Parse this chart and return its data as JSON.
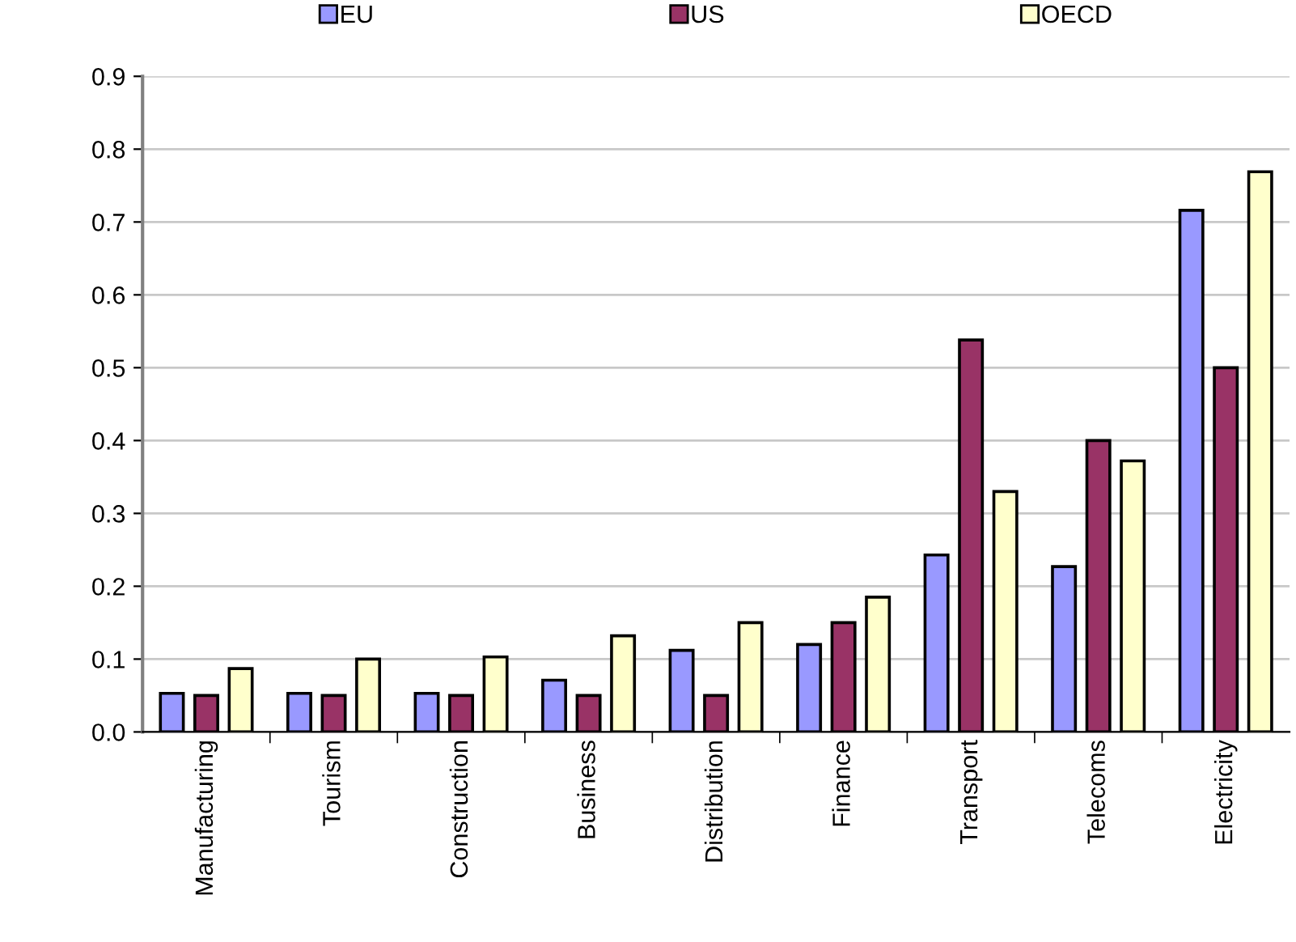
{
  "chart_data": {
    "type": "bar",
    "categories": [
      "Manufacturing",
      "Tourism",
      "Construction",
      "Business",
      "Distribution",
      "Finance",
      "Transport",
      "Telecoms",
      "Electricity"
    ],
    "series": [
      {
        "name": "EU",
        "color": "#9999ff",
        "values": [
          0.053,
          0.053,
          0.053,
          0.071,
          0.112,
          0.12,
          0.243,
          0.227,
          0.716
        ]
      },
      {
        "name": "US",
        "color": "#993366",
        "values": [
          0.05,
          0.05,
          0.05,
          0.05,
          0.05,
          0.15,
          0.538,
          0.4,
          0.5
        ]
      },
      {
        "name": "OECD",
        "color": "#ffffcc",
        "values": [
          0.087,
          0.1,
          0.103,
          0.132,
          0.15,
          0.185,
          0.33,
          0.372,
          0.769
        ]
      }
    ],
    "ylim": [
      0,
      0.9
    ],
    "yticks": [
      {
        "value": 0,
        "label": "0.0"
      },
      {
        "value": 0.1,
        "label": "0.1"
      },
      {
        "value": 0.2,
        "label": "0.2"
      },
      {
        "value": 0.3,
        "label": "0.3"
      },
      {
        "value": 0.4,
        "label": "0.4"
      },
      {
        "value": 0.5,
        "label": "0.5"
      },
      {
        "value": 0.6,
        "label": "0.6"
      },
      {
        "value": 0.7,
        "label": "0.7"
      },
      {
        "value": 0.8,
        "label": "0.8"
      },
      {
        "value": 0.9,
        "label": "0.9"
      }
    ],
    "grid": "y",
    "legend": "top"
  }
}
